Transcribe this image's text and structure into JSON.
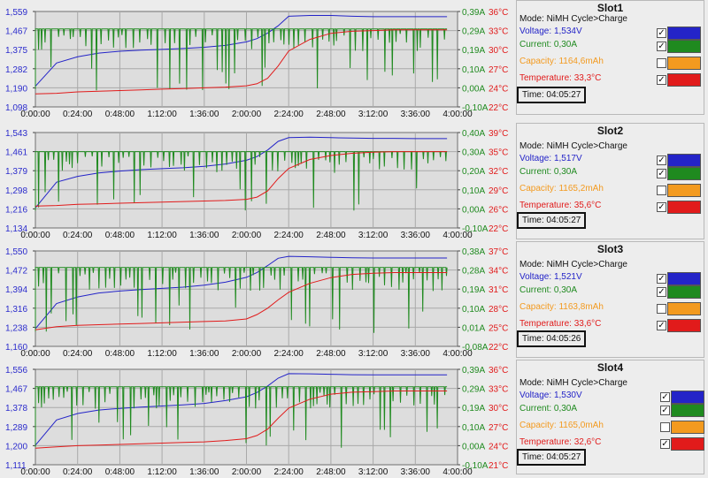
{
  "x_ticks": [
    "0:00:00",
    "0:24:00",
    "0:48:00",
    "1:12:00",
    "1:36:00",
    "2:00:00",
    "2:24:00",
    "2:48:00",
    "3:12:00",
    "3:36:00",
    "4:00:00"
  ],
  "colors": {
    "voltage": "#2424c8",
    "current": "#1f8a1f",
    "capacity": "#f39a1f",
    "temperature": "#e11b1b",
    "plot_bg": "#dddddd",
    "grid": "#a9a9a9"
  },
  "icons": {
    "checked": "checkmark-icon"
  },
  "labels": {
    "mode": "Mode:",
    "voltage": "Voltage:",
    "current": "Current:",
    "capacity": "Capacity:",
    "temperature": "Temperature:",
    "time": "Time:"
  },
  "slots": [
    {
      "title": "Slot1",
      "mode": "NiMH Cycle>Charge",
      "voltage": "1,534V",
      "current": "0,30A",
      "capacity": "1164,6mAh",
      "temperature": "33,3°C",
      "time": "04:05:27",
      "checkboxes": {
        "voltage": true,
        "current": true,
        "capacity": false,
        "temperature": true
      },
      "voltage_ticks": [
        "1,559",
        "1,467",
        "1,375",
        "1,282",
        "1,190",
        "1,098"
      ],
      "current_ticks": [
        "0,39A",
        "0,29A",
        "0,19A",
        "0,10A",
        "0,00A",
        "-0,10A"
      ],
      "temp_ticks": [
        "36°C",
        "33°C",
        "30°C",
        "27°C",
        "24°C",
        "22°C"
      ]
    },
    {
      "title": "Slot2",
      "mode": "NiMH Cycle>Charge",
      "voltage": "1,517V",
      "current": "0,30A",
      "capacity": "1165,2mAh",
      "temperature": "35,6°C",
      "time": "04:05:27",
      "checkboxes": {
        "voltage": true,
        "current": true,
        "capacity": false,
        "temperature": true
      },
      "voltage_ticks": [
        "1,543",
        "1,461",
        "1,379",
        "1,298",
        "1,216",
        "1,134"
      ],
      "current_ticks": [
        "0,40A",
        "0,30A",
        "0,20A",
        "0,10A",
        "0,00A",
        "-0,10A"
      ],
      "temp_ticks": [
        "39°C",
        "35°C",
        "32°C",
        "29°C",
        "26°C",
        "22°C"
      ]
    },
    {
      "title": "Slot3",
      "mode": "NiMH Cycle>Charge",
      "voltage": "1,521V",
      "current": "0,30A",
      "capacity": "1163,8mAh",
      "temperature": "33,6°C",
      "time": "04:05:26",
      "checkboxes": {
        "voltage": true,
        "current": true,
        "capacity": false,
        "temperature": true
      },
      "voltage_ticks": [
        "1,550",
        "1,472",
        "1,394",
        "1,316",
        "1,238",
        "1,160"
      ],
      "current_ticks": [
        "0,38A",
        "0,28A",
        "0,19A",
        "0,10A",
        "0,01A",
        "-0,08A"
      ],
      "temp_ticks": [
        "37°C",
        "34°C",
        "31°C",
        "28°C",
        "25°C",
        "22°C"
      ]
    },
    {
      "title": "Slot4",
      "mode": "NiMH Cycle>Charge",
      "voltage": "1,530V",
      "current": "0,30A",
      "capacity": "1165,0mAh",
      "temperature": "32,6°C",
      "time": "04:05:27",
      "checkboxes": {
        "voltage": true,
        "current": true,
        "capacity": false,
        "temperature": true
      },
      "voltage_ticks": [
        "1,556",
        "1,467",
        "1,378",
        "1,289",
        "1,200",
        "1,111"
      ],
      "current_ticks": [
        "0,39A",
        "0,29A",
        "0,19A",
        "0,10A",
        "0,00A",
        "-0,10A"
      ],
      "temp_ticks": [
        "36°C",
        "33°C",
        "30°C",
        "27°C",
        "24°C",
        "21°C"
      ]
    }
  ],
  "chart_data": [
    {
      "type": "line",
      "title": "Slot1",
      "xlabel": "",
      "ylabel": "",
      "x": [
        "0:00:00",
        "0:12:00",
        "0:24:00",
        "0:36:00",
        "0:48:00",
        "1:00:00",
        "1:12:00",
        "1:24:00",
        "1:36:00",
        "1:48:00",
        "2:00:00",
        "2:06:00",
        "2:12:00",
        "2:18:00",
        "2:24:00",
        "2:36:00",
        "2:48:00",
        "3:00:00",
        "3:12:00",
        "3:24:00",
        "3:36:00",
        "3:48:00",
        "3:54:00"
      ],
      "xlim": [
        "0:00:00",
        "4:00:00"
      ],
      "series": [
        {
          "name": "Voltage",
          "axis": "left",
          "ylim": [
            1.098,
            1.559
          ],
          "values": [
            1.198,
            1.31,
            1.34,
            1.358,
            1.367,
            1.372,
            1.376,
            1.38,
            1.386,
            1.395,
            1.412,
            1.428,
            1.455,
            1.49,
            1.536,
            1.54,
            1.54,
            1.536,
            1.534,
            1.534,
            1.534,
            1.534,
            1.534
          ]
        },
        {
          "name": "Current",
          "axis": "right",
          "ylim": [
            -0.1,
            0.39
          ],
          "values": [
            0.3,
            0.3,
            0.3,
            0.3,
            0.3,
            0.3,
            0.3,
            0.3,
            0.3,
            0.3,
            0.3,
            0.3,
            0.3,
            0.3,
            0.3,
            0.3,
            0.3,
            0.3,
            0.3,
            0.3,
            0.3,
            0.3,
            0.3
          ]
        },
        {
          "name": "Temperature",
          "axis": "right",
          "ylim": [
            22,
            36
          ],
          "values": [
            23.9,
            24.0,
            24.2,
            24.3,
            24.4,
            24.5,
            24.6,
            24.7,
            24.8,
            24.9,
            25.1,
            25.4,
            26.2,
            28.0,
            30.2,
            31.9,
            32.8,
            33.1,
            33.2,
            33.3,
            33.3,
            33.3,
            33.3
          ]
        }
      ]
    },
    {
      "type": "line",
      "title": "Slot2",
      "xlabel": "",
      "ylabel": "",
      "x": [
        "0:00:00",
        "0:12:00",
        "0:24:00",
        "0:36:00",
        "0:48:00",
        "1:00:00",
        "1:12:00",
        "1:24:00",
        "1:36:00",
        "1:48:00",
        "2:00:00",
        "2:06:00",
        "2:12:00",
        "2:18:00",
        "2:24:00",
        "2:36:00",
        "2:48:00",
        "3:00:00",
        "3:12:00",
        "3:24:00",
        "3:36:00",
        "3:48:00",
        "3:54:00"
      ],
      "xlim": [
        "0:00:00",
        "4:00:00"
      ],
      "series": [
        {
          "name": "Voltage",
          "axis": "left",
          "ylim": [
            1.134,
            1.543
          ],
          "values": [
            1.22,
            1.33,
            1.355,
            1.37,
            1.378,
            1.384,
            1.388,
            1.392,
            1.398,
            1.408,
            1.424,
            1.44,
            1.468,
            1.505,
            1.521,
            1.523,
            1.521,
            1.519,
            1.518,
            1.518,
            1.517,
            1.517,
            1.517
          ]
        },
        {
          "name": "Current",
          "axis": "right",
          "ylim": [
            -0.1,
            0.4
          ],
          "values": [
            0.3,
            0.3,
            0.3,
            0.3,
            0.3,
            0.3,
            0.3,
            0.3,
            0.3,
            0.3,
            0.3,
            0.3,
            0.3,
            0.3,
            0.3,
            0.3,
            0.3,
            0.3,
            0.3,
            0.3,
            0.3,
            0.3,
            0.3
          ]
        },
        {
          "name": "Temperature",
          "axis": "right",
          "ylim": [
            22,
            39
          ],
          "values": [
            25.9,
            26.0,
            26.2,
            26.3,
            26.4,
            26.5,
            26.6,
            26.7,
            26.8,
            26.9,
            27.1,
            27.5,
            28.6,
            30.8,
            32.6,
            34.2,
            34.9,
            35.3,
            35.5,
            35.6,
            35.6,
            35.6,
            35.6
          ]
        }
      ]
    },
    {
      "type": "line",
      "title": "Slot3",
      "xlabel": "",
      "ylabel": "",
      "x": [
        "0:00:00",
        "0:12:00",
        "0:24:00",
        "0:36:00",
        "0:48:00",
        "1:00:00",
        "1:12:00",
        "1:24:00",
        "1:36:00",
        "1:48:00",
        "2:00:00",
        "2:06:00",
        "2:12:00",
        "2:18:00",
        "2:24:00",
        "2:36:00",
        "2:48:00",
        "3:00:00",
        "3:12:00",
        "3:24:00",
        "3:36:00",
        "3:48:00",
        "3:54:00"
      ],
      "xlim": [
        "0:00:00",
        "4:00:00"
      ],
      "series": [
        {
          "name": "Voltage",
          "axis": "left",
          "ylim": [
            1.16,
            1.55
          ],
          "values": [
            1.232,
            1.335,
            1.362,
            1.378,
            1.386,
            1.392,
            1.397,
            1.402,
            1.41,
            1.422,
            1.442,
            1.462,
            1.49,
            1.52,
            1.528,
            1.526,
            1.524,
            1.522,
            1.521,
            1.521,
            1.521,
            1.521,
            1.521
          ]
        },
        {
          "name": "Current",
          "axis": "right",
          "ylim": [
            -0.08,
            0.38
          ],
          "values": [
            0.3,
            0.3,
            0.3,
            0.3,
            0.3,
            0.3,
            0.3,
            0.3,
            0.3,
            0.3,
            0.3,
            0.3,
            0.3,
            0.3,
            0.3,
            0.3,
            0.3,
            0.3,
            0.3,
            0.3,
            0.3,
            0.3,
            0.3
          ]
        },
        {
          "name": "Temperature",
          "axis": "right",
          "ylim": [
            22,
            37
          ],
          "values": [
            24.6,
            25.1,
            25.3,
            25.4,
            25.5,
            25.6,
            25.7,
            25.8,
            25.9,
            26.0,
            26.3,
            27.0,
            28.0,
            29.3,
            30.5,
            31.9,
            32.8,
            33.3,
            33.5,
            33.6,
            33.6,
            33.6,
            33.6
          ]
        }
      ]
    },
    {
      "type": "line",
      "title": "Slot4",
      "xlabel": "",
      "ylabel": "",
      "x": [
        "0:00:00",
        "0:12:00",
        "0:24:00",
        "0:36:00",
        "0:48:00",
        "1:00:00",
        "1:12:00",
        "1:24:00",
        "1:36:00",
        "1:48:00",
        "2:00:00",
        "2:06:00",
        "2:12:00",
        "2:18:00",
        "2:24:00",
        "2:36:00",
        "2:48:00",
        "3:00:00",
        "3:12:00",
        "3:24:00",
        "3:36:00",
        "3:48:00",
        "3:54:00"
      ],
      "xlim": [
        "0:00:00",
        "4:00:00"
      ],
      "series": [
        {
          "name": "Voltage",
          "axis": "left",
          "ylim": [
            1.111,
            1.556
          ],
          "values": [
            1.202,
            1.32,
            1.35,
            1.366,
            1.374,
            1.38,
            1.385,
            1.39,
            1.397,
            1.41,
            1.428,
            1.448,
            1.478,
            1.515,
            1.536,
            1.535,
            1.533,
            1.531,
            1.53,
            1.53,
            1.53,
            1.53,
            1.53
          ]
        },
        {
          "name": "Current",
          "axis": "right",
          "ylim": [
            -0.1,
            0.39
          ],
          "values": [
            0.3,
            0.3,
            0.3,
            0.3,
            0.3,
            0.3,
            0.3,
            0.3,
            0.3,
            0.3,
            0.3,
            0.3,
            0.3,
            0.3,
            0.3,
            0.3,
            0.3,
            0.3,
            0.3,
            0.3,
            0.3,
            0.3,
            0.3
          ]
        },
        {
          "name": "Temperature",
          "axis": "right",
          "ylim": [
            21,
            36
          ],
          "values": [
            23.6,
            23.8,
            24.0,
            24.1,
            24.2,
            24.3,
            24.4,
            24.5,
            24.6,
            24.8,
            25.1,
            25.6,
            26.6,
            28.3,
            29.9,
            31.3,
            32.1,
            32.4,
            32.5,
            32.6,
            32.6,
            32.6,
            32.6
          ]
        }
      ]
    }
  ]
}
